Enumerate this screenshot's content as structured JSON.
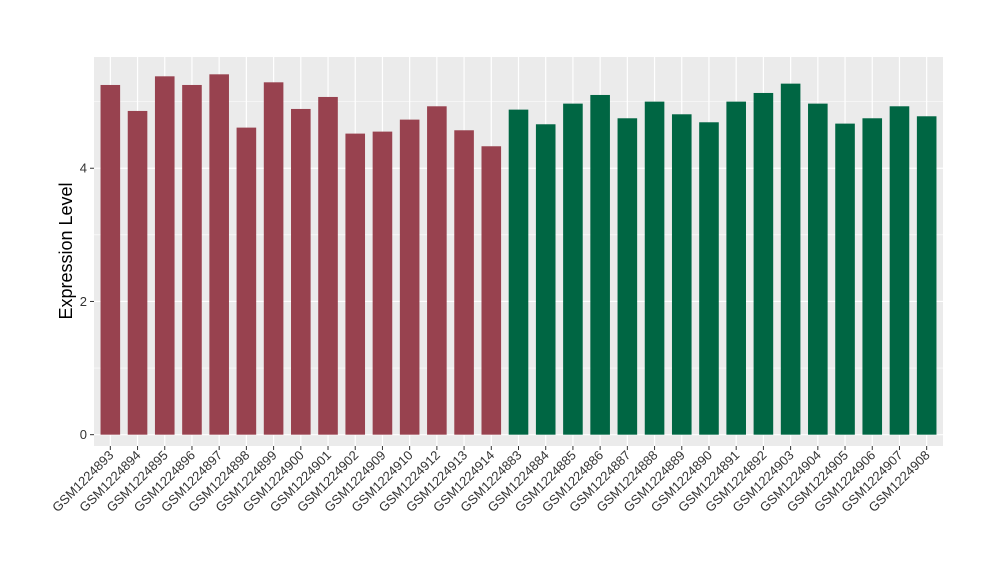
{
  "chart_data": {
    "type": "bar",
    "title": "",
    "xlabel": "",
    "ylabel": "Expression Level",
    "ylim": [
      -0.17,
      5.67
    ],
    "yticks": [
      0,
      2,
      4
    ],
    "grid": true,
    "legend": "none",
    "categories": [
      "GSM1224893",
      "GSM1224894",
      "GSM1224895",
      "GSM1224896",
      "GSM1224897",
      "GSM1224898",
      "GSM1224899",
      "GSM1224900",
      "GSM1224901",
      "GSM1224902",
      "GSM1224909",
      "GSM1224910",
      "GSM1224912",
      "GSM1224913",
      "GSM1224914",
      "GSM1224883",
      "GSM1224884",
      "GSM1224885",
      "GSM1224886",
      "GSM1224887",
      "GSM1224888",
      "GSM1224889",
      "GSM1224890",
      "GSM1224891",
      "GSM1224892",
      "GSM1224903",
      "GSM1224904",
      "GSM1224905",
      "GSM1224906",
      "GSM1224907",
      "GSM1224908"
    ],
    "values": [
      5.25,
      4.86,
      5.38,
      5.25,
      5.41,
      4.61,
      5.29,
      4.89,
      5.07,
      4.52,
      4.55,
      4.73,
      4.93,
      4.57,
      4.33,
      4.88,
      4.66,
      4.97,
      5.1,
      4.75,
      5.0,
      4.81,
      4.69,
      5.0,
      5.13,
      5.27,
      4.97,
      4.67,
      4.75,
      4.93,
      4.78
    ],
    "colors": [
      "#98424f",
      "#98424f",
      "#98424f",
      "#98424f",
      "#98424f",
      "#98424f",
      "#98424f",
      "#98424f",
      "#98424f",
      "#98424f",
      "#98424f",
      "#98424f",
      "#98424f",
      "#98424f",
      "#98424f",
      "#006643",
      "#006643",
      "#006643",
      "#006643",
      "#006643",
      "#006643",
      "#006643",
      "#006643",
      "#006643",
      "#006643",
      "#006643",
      "#006643",
      "#006643",
      "#006643",
      "#006643",
      "#006643"
    ],
    "panel_background": "#ebebeb",
    "grid_color": "#ffffff"
  }
}
